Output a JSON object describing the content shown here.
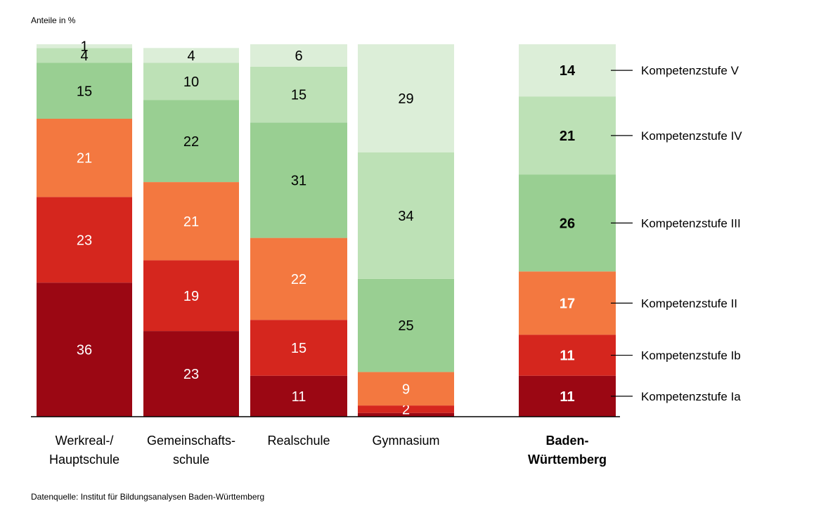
{
  "chart_data": {
    "type": "bar",
    "stacked": true,
    "normalized_100": true,
    "ylabel": "Anteile in %",
    "source": "Datenquelle: Institut für Bildungsanalysen Baden-Württemberg",
    "categories": [
      {
        "lines": [
          "Werkreal-/",
          "Hauptschule"
        ],
        "bold": false
      },
      {
        "lines": [
          "Gemeinschafts-",
          "schule"
        ],
        "bold": false
      },
      {
        "lines": [
          "Realschule"
        ],
        "bold": false
      },
      {
        "lines": [
          "Gymnasium"
        ],
        "bold": false
      },
      {
        "lines": [
          "Baden-",
          "Württemberg"
        ],
        "bold": true
      }
    ],
    "series": [
      {
        "name": "Kompetenzstufe Ia",
        "color": "#9b0713",
        "label_color": "#ffffff",
        "values": [
          36,
          23,
          11,
          1,
          11
        ]
      },
      {
        "name": "Kompetenzstufe Ib",
        "color": "#d5261e",
        "label_color": "#ffffff",
        "values": [
          23,
          19,
          15,
          2,
          11
        ]
      },
      {
        "name": "Kompetenzstufe II",
        "color": "#f37840",
        "label_color": "#ffffff",
        "values": [
          21,
          21,
          22,
          9,
          17
        ]
      },
      {
        "name": "Kompetenzstufe III",
        "color": "#99cf92",
        "label_color": "#000000",
        "values": [
          15,
          22,
          31,
          25,
          26
        ]
      },
      {
        "name": "Kompetenzstufe IV",
        "color": "#bde1b6",
        "label_color": "#000000",
        "values": [
          4,
          10,
          15,
          34,
          21
        ]
      },
      {
        "name": "Kompetenzstufe V",
        "color": "#dceed8",
        "label_color": "#000000",
        "values": [
          1,
          4,
          6,
          29,
          14
        ]
      }
    ],
    "value_labels": [
      [
        "36",
        "23",
        "21",
        "15",
        "4",
        "1"
      ],
      [
        "23",
        "19",
        "21",
        "22",
        "10",
        "4"
      ],
      [
        "11",
        "15",
        "22",
        "31",
        "15",
        "6"
      ],
      [
        "",
        "2",
        "9",
        "25",
        "34",
        "29"
      ],
      [
        "11",
        "11",
        "17",
        "26",
        "21",
        "14"
      ]
    ],
    "ylim": [
      0,
      100
    ]
  }
}
